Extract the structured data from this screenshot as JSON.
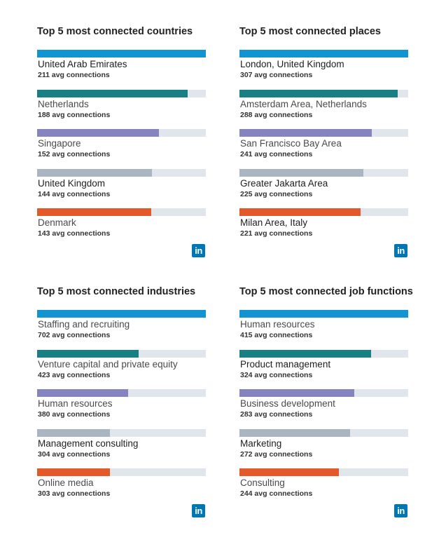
{
  "logo": {
    "text": "in",
    "color": "#0077b5"
  },
  "chart_data": [
    {
      "type": "bar",
      "title": "Top 5 most connected countries",
      "categories": [
        "United Arab Emirates",
        "Netherlands",
        "Singapore",
        "United Kingdom",
        "Denmark"
      ],
      "values": [
        211,
        188,
        152,
        144,
        143
      ],
      "value_labels": [
        "211 avg connections",
        "188 avg connections",
        "152 avg connections",
        "144 avg connections",
        "143 avg connections"
      ],
      "colors": [
        "#1394d2",
        "#187f85",
        "#8683c1",
        "#a9b5c0",
        "#e3592a"
      ],
      "label_dark": [
        true,
        false,
        false,
        true,
        false
      ],
      "xlim": [
        0,
        211
      ]
    },
    {
      "type": "bar",
      "title": "Top 5 most connected places",
      "categories": [
        "London, United Kingdom",
        "Amsterdam Area, Netherlands",
        "San Francisco Bay Area",
        "Greater Jakarta Area",
        "Milan Area, Italy"
      ],
      "values": [
        307,
        288,
        241,
        225,
        221
      ],
      "value_labels": [
        "307 avg connections",
        "288 avg connections",
        "241 avg connections",
        "225 avg connections",
        "221 avg connections"
      ],
      "colors": [
        "#1394d2",
        "#187f85",
        "#8683c1",
        "#a9b5c0",
        "#e3592a"
      ],
      "label_dark": [
        true,
        false,
        false,
        true,
        true
      ],
      "xlim": [
        0,
        307
      ]
    },
    {
      "type": "bar",
      "title": "Top 5 most connected industries",
      "categories": [
        "Staffing and recruiting",
        "Venture capital and private equity",
        "Human resources",
        "Management consulting",
        "Online media"
      ],
      "values": [
        702,
        423,
        380,
        304,
        303
      ],
      "value_labels": [
        "702 avg connections",
        "423 avg connections",
        "380 avg connections",
        "304 avg connections",
        "303 avg connections"
      ],
      "colors": [
        "#1394d2",
        "#187f85",
        "#8683c1",
        "#a9b5c0",
        "#e3592a"
      ],
      "label_dark": [
        false,
        false,
        false,
        true,
        false
      ],
      "xlim": [
        0,
        702
      ]
    },
    {
      "type": "bar",
      "title": "Top 5 most connected job functions",
      "categories": [
        "Human resources",
        "Product management",
        "Business development",
        "Marketing",
        "Consulting"
      ],
      "values": [
        415,
        324,
        283,
        272,
        244
      ],
      "value_labels": [
        "415 avg connections",
        "324 avg connections",
        "283 avg connections",
        "272 avg connections",
        "244 avg connections"
      ],
      "colors": [
        "#1394d2",
        "#187f85",
        "#8683c1",
        "#a9b5c0",
        "#e3592a"
      ],
      "label_dark": [
        false,
        true,
        false,
        true,
        false
      ],
      "xlim": [
        0,
        415
      ]
    }
  ]
}
